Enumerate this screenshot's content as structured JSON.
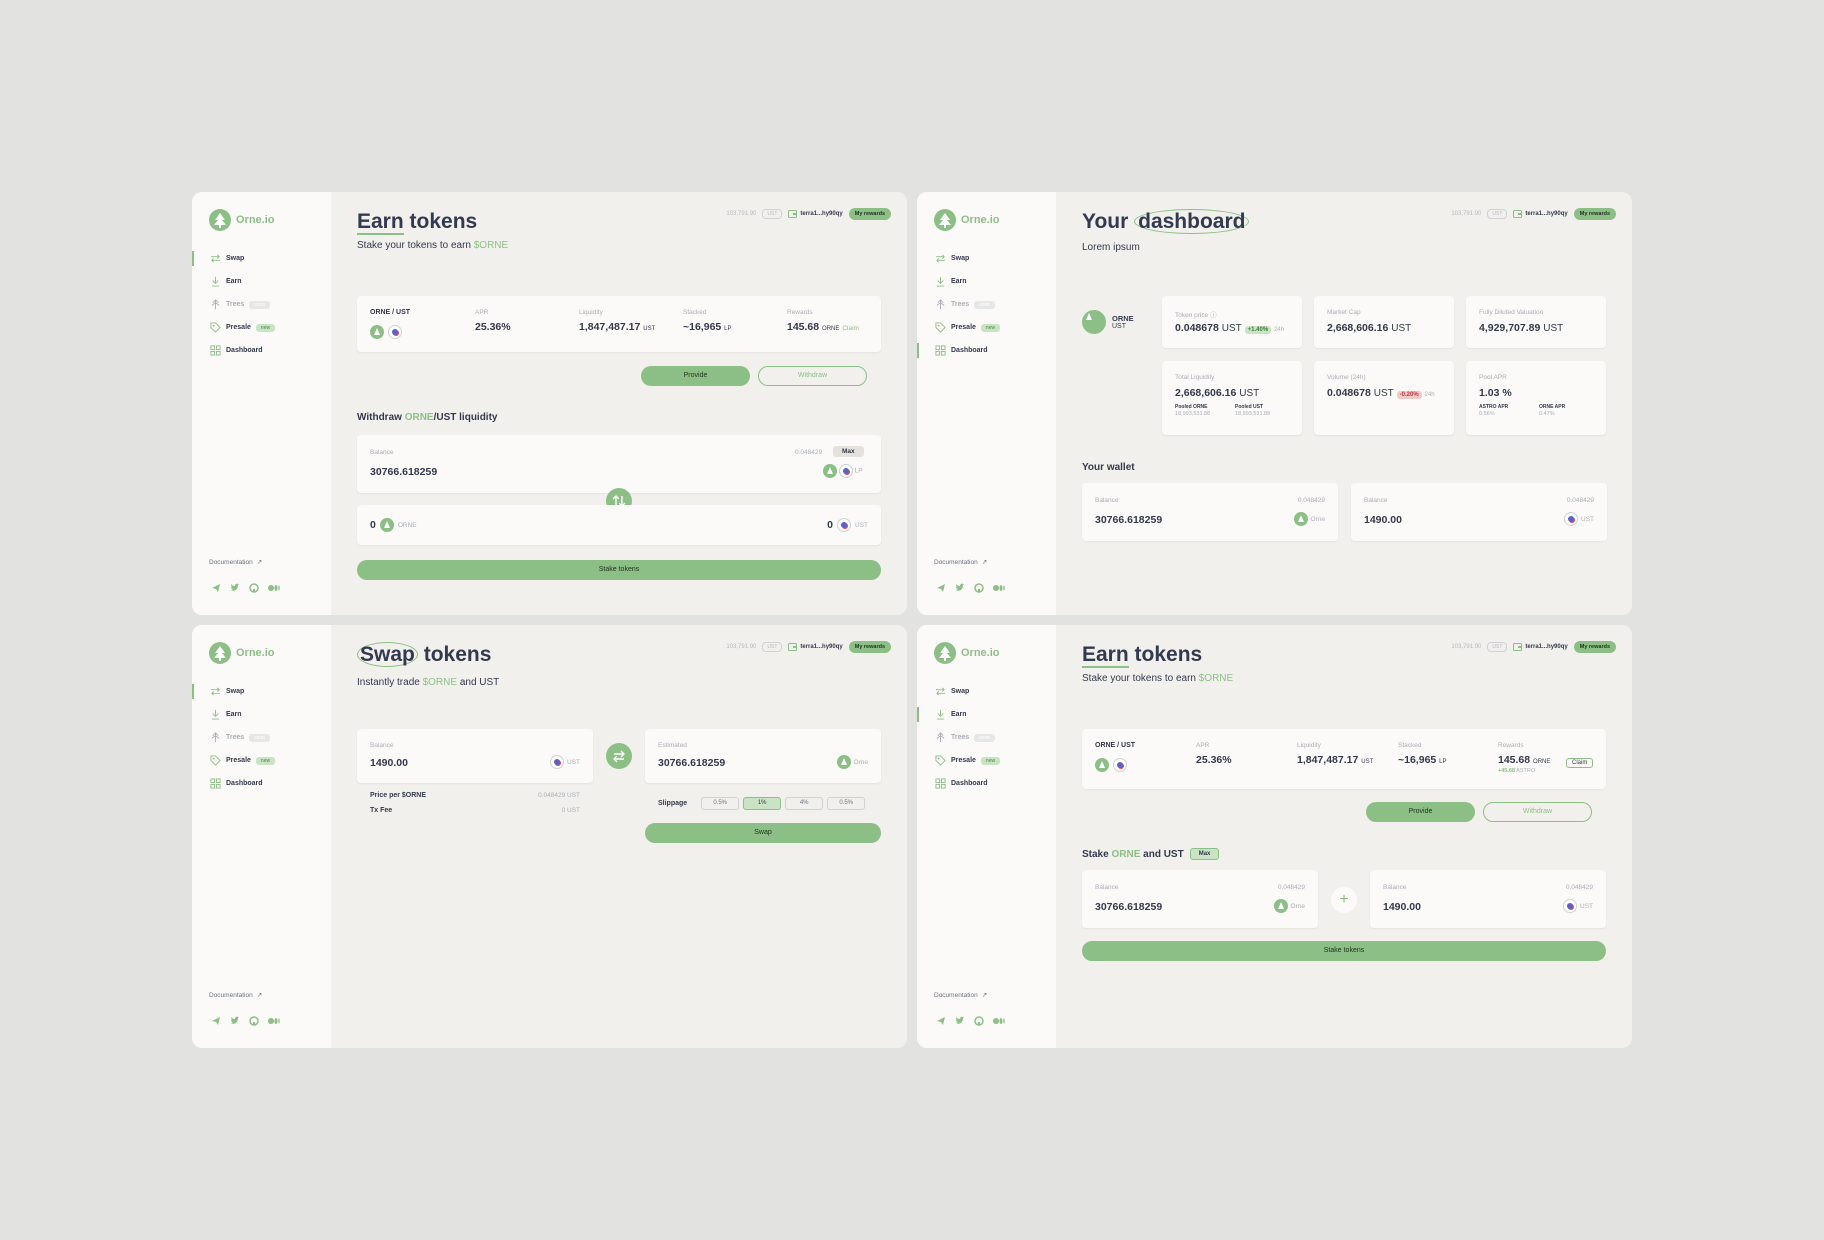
{
  "brand": {
    "name": "Orne.io",
    "accent": "#8cbf85",
    "dark": "#33394f"
  },
  "nav": {
    "swap": "Swap",
    "earn": "Earn",
    "trees": "Trees",
    "trees_badge": "soon",
    "presale": "Presale",
    "presale_badge": "new",
    "dashboard": "Dashboard"
  },
  "docs": "Documentation",
  "topbar": {
    "balance": "103,791.90",
    "unit": "UST",
    "address": "terra1...hy90qy",
    "rewards": "My rewards"
  },
  "earn1": {
    "title_a": "Earn",
    "title_b": "tokens",
    "subtitle_a": "Stake your tokens to earn ",
    "subtitle_b": "$ORNE",
    "pair": "ORNE / UST",
    "apr_label": "APR",
    "apr": "25.36%",
    "liq_label": "Liquidity",
    "liq": "1,847,487.17",
    "liq_unit": "UST",
    "stacked_label": "Stacked",
    "stacked": "~16,965",
    "stacked_unit": "LP",
    "rewards_label": "Rewards",
    "rewards": "145.68",
    "rewards_unit": "ORNE",
    "claim": "Claim",
    "provide": "Provide",
    "withdraw": "Withdraw",
    "section_a": "Withdraw ",
    "section_b": "ORNE",
    "section_c": "/UST liquidity",
    "balance_label": "Balance",
    "balance_right": "0.048429",
    "max": "Max",
    "balance": "30766.618259",
    "lp": "LP",
    "out_orne_val": "0",
    "out_orne": "ORNE",
    "out_ust_val": "0",
    "out_ust": "UST",
    "stake": "Stake tokens"
  },
  "dash": {
    "title_a": "Your",
    "title_b": "dashboard",
    "subtitle": "Lorem ipsum",
    "token": "ORNE",
    "token_sub": "UST",
    "price_label": "Token price",
    "price": "0.048678",
    "price_unit": "UST",
    "price_change": "+1.40%",
    "period": "24h",
    "mcap_label": "Market Cap",
    "mcap": "2,668,606.16",
    "mcap_unit": "UST",
    "fdv_label": "Fully Diluted Valuation",
    "fdv": "4,929,707.89",
    "fdv_unit": "UST",
    "tl_label": "Total Liquidity",
    "tl": "2,668,606.16",
    "tl_unit": "UST",
    "pooled_orne_label": "Pooled ORNE",
    "pooled_orne": "18,993,531.88",
    "pooled_ust_label": "Pooled UST",
    "pooled_ust": "18,993,531.88",
    "vol_label": "Volume (24h)",
    "vol": "0.048678",
    "vol_unit": "UST",
    "vol_change": "-0.20%",
    "vol_period": "24h",
    "papr_label": "Pool APR",
    "papr": "1.03 %",
    "astro_label": "ASTRO APR",
    "astro": "0.56%",
    "orne_apr_label": "ORNE APR",
    "orne_apr": "0.47%",
    "wallet": "Your wallet",
    "w1_label": "Balance",
    "w1_right": "0.048429",
    "w1": "30766.618259",
    "w1_tok": "Orne",
    "w2_label": "Balance",
    "w2_right": "0.048429",
    "w2": "1490.00",
    "w2_tok": "UST"
  },
  "swap": {
    "title_a": "Swap",
    "title_b": "tokens",
    "subtitle_a": "Instantly trade ",
    "subtitle_b": "$ORNE",
    "subtitle_c": " and UST",
    "from_label": "Balance",
    "from": "1490.00",
    "from_tok": "UST",
    "to_label": "Estimated",
    "to": "30766.618259",
    "to_tok": "Orne",
    "price_label": "Price per $ORNE",
    "price": "0.048429 UST",
    "fee_label": "Tx Fee",
    "fee": "0 UST",
    "slippage": "Slippage",
    "slip": [
      "0.5%",
      "1%",
      "4%",
      "0.5%"
    ],
    "swap": "Swap"
  },
  "earn2": {
    "title_a": "Earn",
    "title_b": "tokens",
    "subtitle_a": "Stake your tokens to earn ",
    "subtitle_b": "$ORNE",
    "pair": "ORNE / UST",
    "apr_label": "APR",
    "apr": "25.36%",
    "liq_label": "Liquidity",
    "liq": "1,847,487.17",
    "liq_unit": "UST",
    "stacked_label": "Stacked",
    "stacked": "~16,965",
    "stacked_unit": "LP",
    "rewards_label": "Rewards",
    "rewards": "145.68",
    "rewards_unit": "ORNE",
    "astro": "+45.68",
    "astro_unit": "ASTRO",
    "claim": "Claim",
    "provide": "Provide",
    "withdraw": "Withdraw",
    "section_a": "Stake ",
    "section_b": "ORNE",
    "section_c": " and UST",
    "max": "Max",
    "b1_label": "Balance",
    "b1_right": "0.048429",
    "b1": "30766.618259",
    "b1_tok": "Orne",
    "b2_label": "Balance",
    "b2_right": "0.048429",
    "b2": "1490.00",
    "b2_tok": "UST",
    "stake": "Stake tokens"
  }
}
